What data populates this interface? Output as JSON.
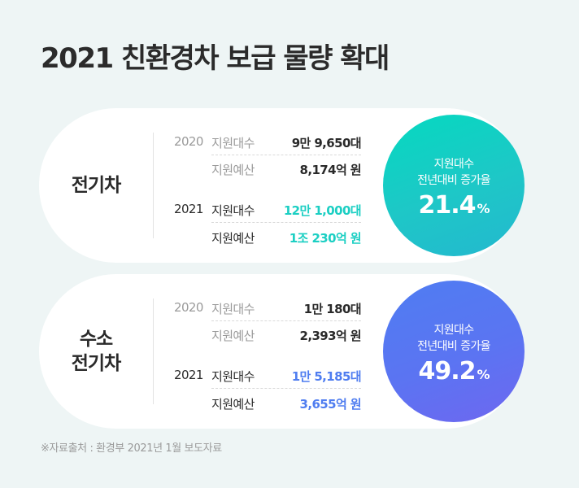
{
  "title": "2021 친환경차 보급 물량 확대",
  "ev": {
    "category": [
      "전기차"
    ],
    "rows": [
      {
        "year": "2020",
        "label": "지원대수",
        "value": "9만 9,650대"
      },
      {
        "year": "",
        "label": "지원예산",
        "value": "8,174억 원"
      },
      {
        "year": "2021",
        "label": "지원대수",
        "value": "12만 1,000대"
      },
      {
        "year": "",
        "label": "지원예산",
        "value": "1조 230억 원"
      }
    ],
    "circle": {
      "line1": "지원대수",
      "line2": "전년대비 증가율",
      "number": "21.4",
      "unit": "%"
    }
  },
  "fcev": {
    "category": [
      "수소",
      "전기차"
    ],
    "rows": [
      {
        "year": "2020",
        "label": "지원대수",
        "value": "1만 180대"
      },
      {
        "year": "",
        "label": "지원예산",
        "value": "2,393억 원"
      },
      {
        "year": "2021",
        "label": "지원대수",
        "value": "1만 5,185대"
      },
      {
        "year": "",
        "label": "지원예산",
        "value": "3,655억 원"
      }
    ],
    "circle": {
      "line1": "지원대수",
      "line2": "전년대비 증가율",
      "number": "49.2",
      "unit": "%"
    }
  },
  "source": "※자료출처 : 환경부 2021년 1월 보도자료",
  "colors": {
    "background": "#eef5f5",
    "ev_accent": "#1ccfc3",
    "fcev_accent": "#4f7df0"
  }
}
